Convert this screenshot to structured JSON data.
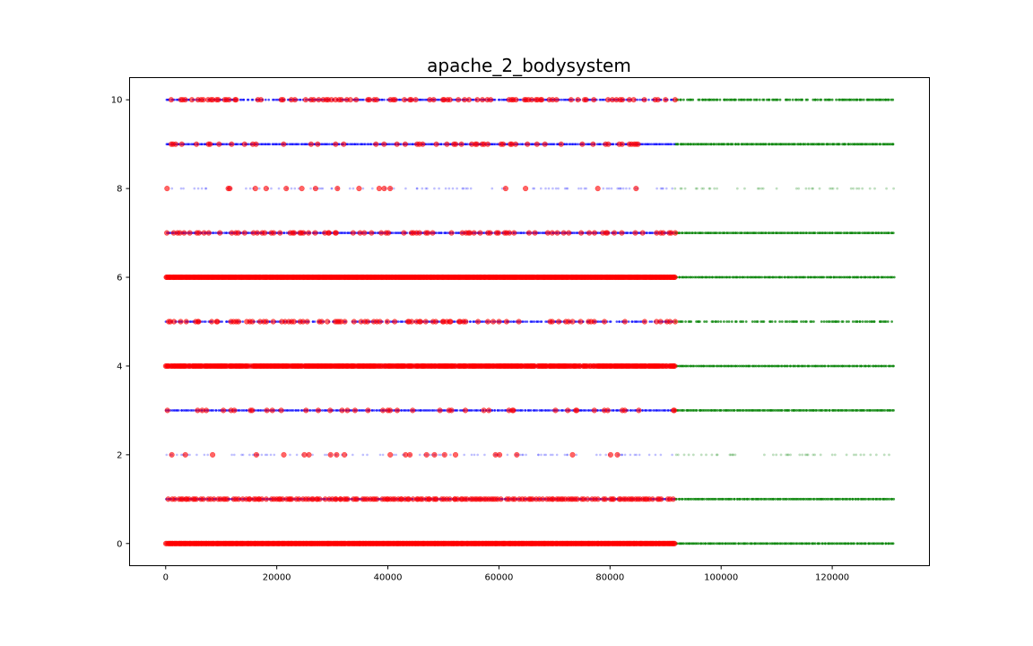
{
  "chart_data": {
    "type": "scatter",
    "title": "apache_2_bodysystem",
    "xlabel": "",
    "ylabel": "",
    "xlim": [
      -6500,
      137500
    ],
    "ylim": [
      -0.5,
      10.5
    ],
    "x_ticks": [
      0,
      20000,
      40000,
      60000,
      80000,
      100000,
      120000
    ],
    "x_tick_labels": [
      "0",
      "20000",
      "40000",
      "60000",
      "80000",
      "100000",
      "120000"
    ],
    "y_ticks": [
      0,
      2,
      4,
      6,
      8,
      10
    ],
    "y_tick_labels": [
      "0",
      "2",
      "4",
      "6",
      "8",
      "10"
    ],
    "grid": false,
    "legend": "none",
    "split_x": 91700,
    "x_max": 131000,
    "colors": {
      "train": "#0000ff",
      "test": "#008000",
      "highlight": "#ff0000"
    },
    "rows": [
      {
        "y": 0,
        "train_density": 1.0,
        "test_density": 1.0,
        "red_density": 1.0
      },
      {
        "y": 1,
        "train_density": 1.0,
        "test_density": 1.0,
        "red_density": 0.85
      },
      {
        "y": 2,
        "train_density": 0.3,
        "test_density": 0.3,
        "red_density": 0.12
      },
      {
        "y": 3,
        "train_density": 1.0,
        "test_density": 1.0,
        "red_density": 0.2
      },
      {
        "y": 4,
        "train_density": 1.0,
        "test_density": 1.0,
        "red_density": 0.9
      },
      {
        "y": 5,
        "train_density": 0.75,
        "test_density": 0.7,
        "red_density": 0.35
      },
      {
        "y": 6,
        "train_density": 1.0,
        "test_density": 1.0,
        "red_density": 1.0
      },
      {
        "y": 7,
        "train_density": 1.0,
        "test_density": 1.0,
        "red_density": 0.45
      },
      {
        "y": 8,
        "train_density": 0.25,
        "test_density": 0.25,
        "red_density": 0.05
      },
      {
        "y": 9,
        "train_density": 1.0,
        "test_density": 1.0,
        "red_density": 0.25
      },
      {
        "y": 10,
        "train_density": 0.85,
        "test_density": 0.8,
        "red_density": 0.4
      }
    ]
  }
}
